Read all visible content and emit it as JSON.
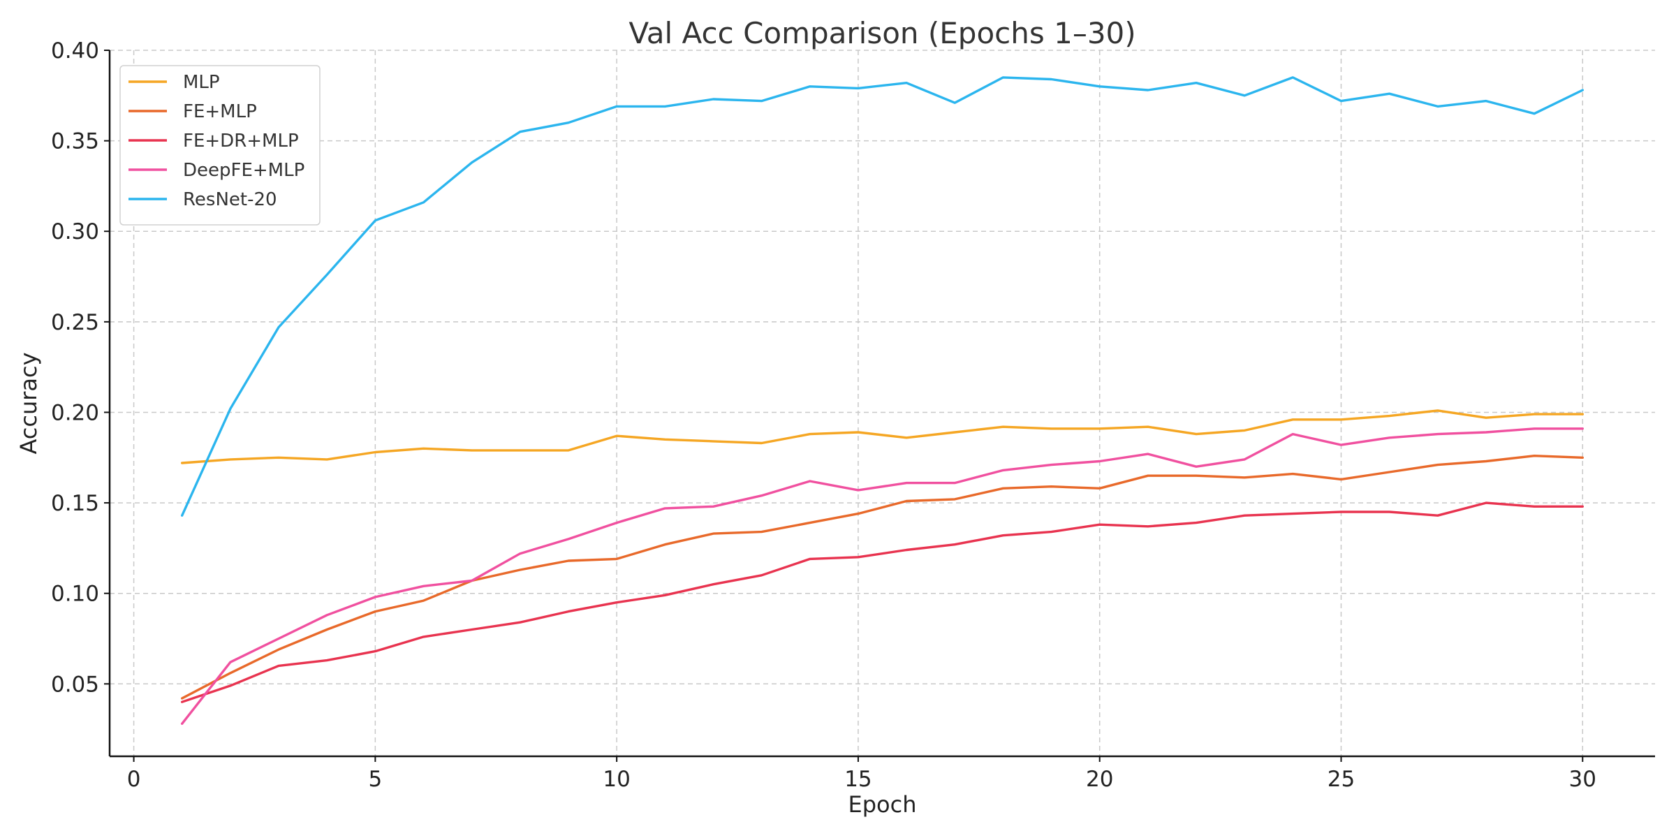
{
  "chart_data": {
    "type": "line",
    "title": "Val Acc Comparison (Epochs 1–30)",
    "xlabel": "Epoch",
    "ylabel": "Accuracy",
    "xlim": [
      -0.5,
      31.5
    ],
    "ylim": [
      0.01,
      0.4
    ],
    "xticks": [
      0,
      5,
      10,
      15,
      20,
      25,
      30
    ],
    "xtick_labels": [
      "0",
      "5",
      "10",
      "15",
      "20",
      "25",
      "30"
    ],
    "yticks": [
      0.05,
      0.1,
      0.15,
      0.2,
      0.25,
      0.3,
      0.35,
      0.4
    ],
    "ytick_labels": [
      "0.05",
      "0.10",
      "0.15",
      "0.20",
      "0.25",
      "0.30",
      "0.35",
      "0.40"
    ],
    "grid": true,
    "legend_position": "top-left",
    "x": [
      1,
      2,
      3,
      4,
      5,
      6,
      7,
      8,
      9,
      10,
      11,
      12,
      13,
      14,
      15,
      16,
      17,
      18,
      19,
      20,
      21,
      22,
      23,
      24,
      25,
      26,
      27,
      28,
      29,
      30
    ],
    "series": [
      {
        "name": "MLP",
        "color": "#F5A623",
        "values": [
          0.172,
          0.174,
          0.175,
          0.174,
          0.178,
          0.18,
          0.179,
          0.179,
          0.179,
          0.187,
          0.185,
          0.184,
          0.183,
          0.188,
          0.189,
          0.186,
          0.189,
          0.192,
          0.191,
          0.191,
          0.192,
          0.188,
          0.19,
          0.196,
          0.196,
          0.198,
          0.201,
          0.197,
          0.199,
          0.199
        ]
      },
      {
        "name": "FE+MLP",
        "color": "#E8692A",
        "values": [
          0.042,
          0.056,
          0.069,
          0.08,
          0.09,
          0.096,
          0.107,
          0.113,
          0.118,
          0.119,
          0.127,
          0.133,
          0.134,
          0.139,
          0.144,
          0.151,
          0.152,
          0.158,
          0.159,
          0.158,
          0.165,
          0.165,
          0.164,
          0.166,
          0.163,
          0.167,
          0.171,
          0.173,
          0.176,
          0.175
        ]
      },
      {
        "name": "FE+DR+MLP",
        "color": "#E8334F",
        "values": [
          0.04,
          0.049,
          0.06,
          0.063,
          0.068,
          0.076,
          0.08,
          0.084,
          0.09,
          0.095,
          0.099,
          0.105,
          0.11,
          0.119,
          0.12,
          0.124,
          0.127,
          0.132,
          0.134,
          0.138,
          0.137,
          0.139,
          0.143,
          0.144,
          0.145,
          0.145,
          0.143,
          0.15,
          0.148,
          0.148
        ]
      },
      {
        "name": "DeepFE+MLP",
        "color": "#F0509F",
        "values": [
          0.028,
          0.062,
          0.075,
          0.088,
          0.098,
          0.104,
          0.107,
          0.122,
          0.13,
          0.139,
          0.147,
          0.148,
          0.154,
          0.162,
          0.157,
          0.161,
          0.161,
          0.168,
          0.171,
          0.173,
          0.177,
          0.17,
          0.174,
          0.188,
          0.182,
          0.186,
          0.188,
          0.189,
          0.191,
          0.191
        ]
      },
      {
        "name": "ResNet-20",
        "color": "#2BB5EE",
        "values": [
          0.143,
          0.202,
          0.247,
          0.276,
          0.306,
          0.316,
          0.338,
          0.355,
          0.36,
          0.369,
          0.369,
          0.373,
          0.372,
          0.38,
          0.379,
          0.382,
          0.371,
          0.385,
          0.384,
          0.38,
          0.378,
          0.382,
          0.375,
          0.385,
          0.372,
          0.376,
          0.369,
          0.372,
          0.365,
          0.378
        ]
      }
    ]
  }
}
